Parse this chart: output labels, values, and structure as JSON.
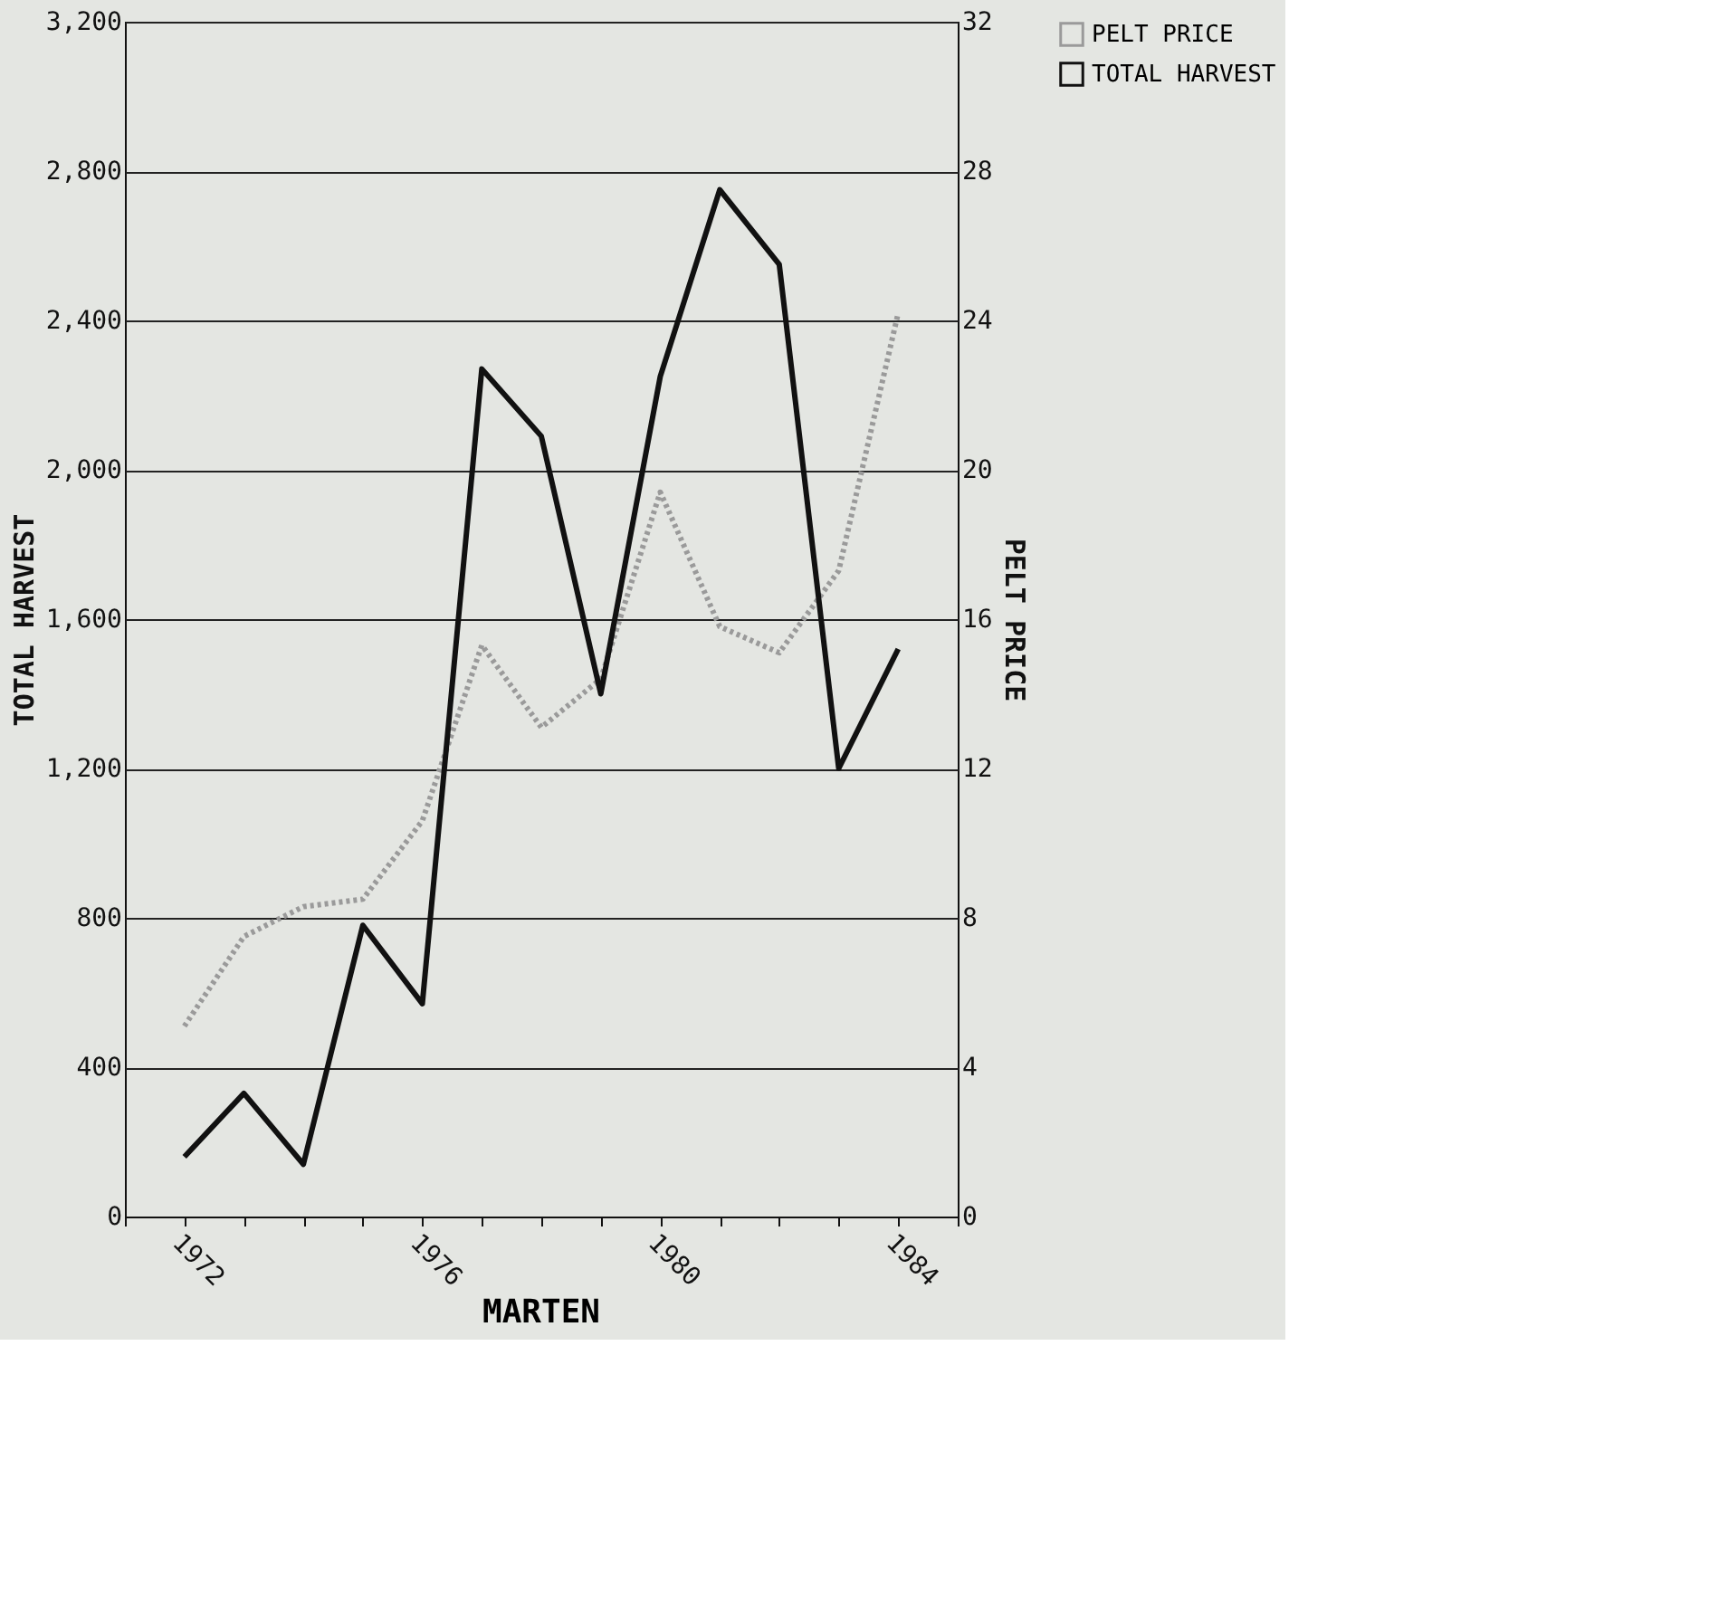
{
  "chart_data": {
    "type": "line",
    "title": "MARTEN",
    "ylabel": "TOTAL HARVEST",
    "y2label": "PELT PRICE",
    "x": [
      1972,
      1973,
      1974,
      1975,
      1976,
      1977,
      1978,
      1979,
      1980,
      1981,
      1982,
      1983,
      1984
    ],
    "series": [
      {
        "name": "PELT PRICE",
        "color": "#9a9a9a",
        "axis": "y2",
        "line_style": "dotted",
        "values": [
          5.1,
          7.5,
          8.3,
          8.5,
          10.6,
          15.3,
          13.1,
          14.4,
          19.4,
          15.8,
          15.1,
          17.3,
          24.2
        ]
      },
      {
        "name": "TOTAL HARVEST",
        "color": "#111111",
        "line_style": "solid",
        "values": [
          160,
          330,
          140,
          780,
          570,
          2270,
          2090,
          1400,
          2250,
          2750,
          2550,
          1200,
          1520
        ]
      }
    ],
    "xlim": [
      1971,
      1985
    ],
    "xticks": [
      {
        "value": 1971,
        "label": null
      },
      1972,
      {
        "value": 1973,
        "label": null
      },
      {
        "value": 1974,
        "label": null
      },
      {
        "value": 1975,
        "label": null
      },
      1976,
      {
        "value": 1977,
        "label": null
      },
      {
        "value": 1978,
        "label": null
      },
      {
        "value": 1979,
        "label": null
      },
      1980,
      {
        "value": 1981,
        "label": null
      },
      {
        "value": 1982,
        "label": null
      },
      {
        "value": 1983,
        "label": null
      },
      1984,
      {
        "value": 1985,
        "label": null
      }
    ],
    "ylim": [
      0,
      3200
    ],
    "yticks": [
      {
        "value": 0,
        "label": "0"
      },
      {
        "value": 400,
        "label": "400"
      },
      {
        "value": 800,
        "label": "800"
      },
      {
        "value": 1200,
        "label": "1,200"
      },
      {
        "value": 1600,
        "label": "1,600"
      },
      {
        "value": 2000,
        "label": "2,000"
      },
      {
        "value": 2400,
        "label": "2,400"
      },
      {
        "value": 2800,
        "label": "2,800"
      },
      {
        "value": 3200,
        "label": "3,200"
      }
    ],
    "y2lim": [
      0,
      32
    ],
    "y2ticks": [
      0,
      4,
      8,
      12,
      16,
      20,
      24,
      28,
      32
    ],
    "grid": "y",
    "legend": "right"
  }
}
